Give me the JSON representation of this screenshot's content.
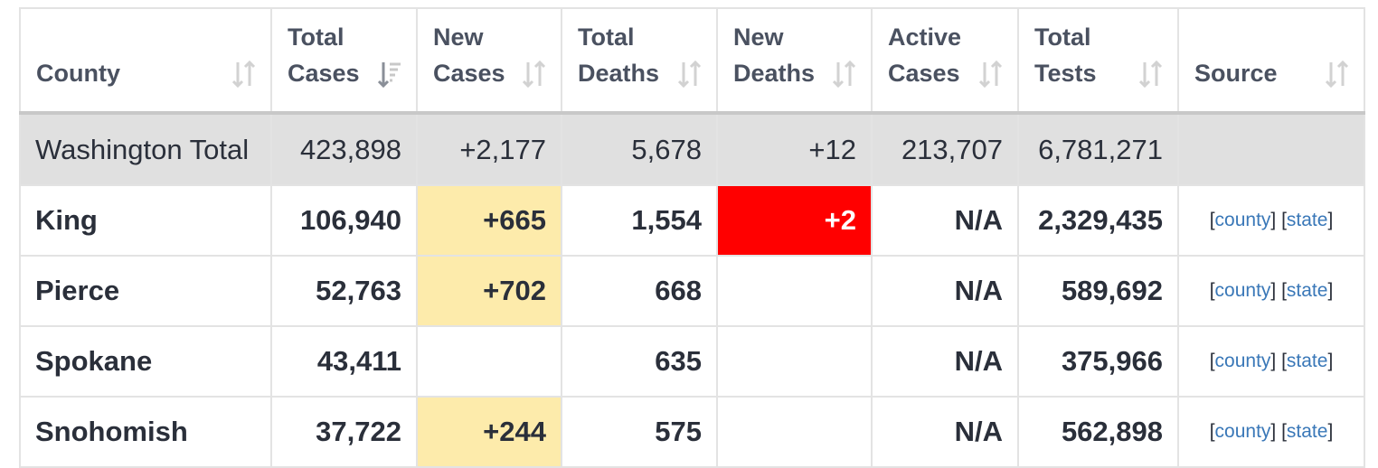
{
  "headers": [
    {
      "line1": "",
      "line2": "County",
      "sort": "unsorted"
    },
    {
      "line1": "Total",
      "line2": "Cases",
      "sort": "sorted-desc"
    },
    {
      "line1": "New",
      "line2": "Cases",
      "sort": "unsorted"
    },
    {
      "line1": "Total",
      "line2": "Deaths",
      "sort": "unsorted"
    },
    {
      "line1": "New",
      "line2": "Deaths",
      "sort": "unsorted"
    },
    {
      "line1": "Active",
      "line2": "Cases",
      "sort": "unsorted"
    },
    {
      "line1": "Total",
      "line2": "Tests",
      "sort": "unsorted"
    },
    {
      "line1": "",
      "line2": "Source",
      "sort": "unsorted"
    }
  ],
  "total_row": {
    "name": "Washington Total",
    "total_cases": "423,898",
    "new_cases": "+2,177",
    "total_deaths": "5,678",
    "new_deaths": "+12",
    "active_cases": "213,707",
    "total_tests": "6,781,271"
  },
  "rows": [
    {
      "name": "King",
      "total_cases": "106,940",
      "new_cases": "+665",
      "total_deaths": "1,554",
      "new_deaths": "+2",
      "active_cases": "N/A",
      "total_tests": "2,329,435",
      "src_county": "county",
      "src_state": "state"
    },
    {
      "name": "Pierce",
      "total_cases": "52,763",
      "new_cases": "+702",
      "total_deaths": "668",
      "new_deaths": "",
      "active_cases": "N/A",
      "total_tests": "589,692",
      "src_county": "county",
      "src_state": "state"
    },
    {
      "name": "Spokane",
      "total_cases": "43,411",
      "new_cases": "",
      "total_deaths": "635",
      "new_deaths": "",
      "active_cases": "N/A",
      "total_tests": "375,966",
      "src_county": "county",
      "src_state": "state"
    },
    {
      "name": "Snohomish",
      "total_cases": "37,722",
      "new_cases": "+244",
      "total_deaths": "575",
      "new_deaths": "",
      "active_cases": "N/A",
      "total_tests": "562,898",
      "src_county": "county",
      "src_state": "state"
    }
  ],
  "colors": {
    "new_cases_highlight": "#fdebab",
    "new_deaths_highlight": "#ff0000",
    "total_row_bg": "#e0e0e0",
    "link": "#3a78b8"
  }
}
